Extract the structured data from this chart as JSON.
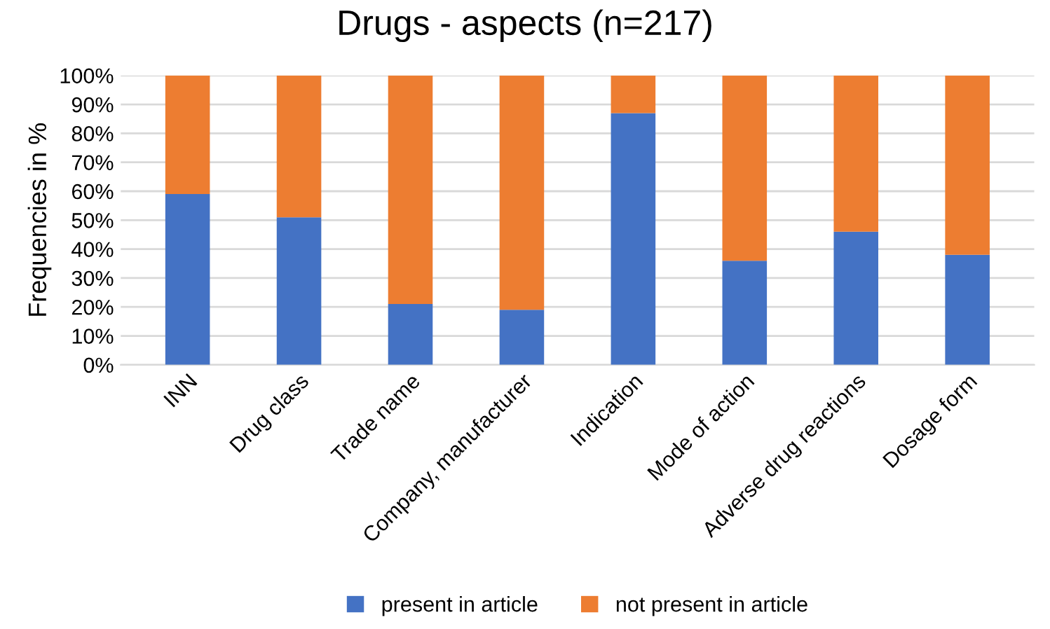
{
  "chart_data": {
    "type": "bar",
    "stacked": true,
    "title": "Drugs - aspects (n=217)",
    "ylabel": "Frequencies in %",
    "categories": [
      "INN",
      "Drug class",
      "Trade name",
      "Company, manufacturer",
      "Indication",
      "Mode of action",
      "Adverse drug reactions",
      "Dosage form"
    ],
    "series": [
      {
        "name": "present in article",
        "color": "#4472c4",
        "values": [
          59,
          51,
          21,
          19,
          87,
          36,
          46,
          38
        ]
      },
      {
        "name": "not present in article",
        "color": "#ed7d31",
        "values": [
          41,
          49,
          79,
          81,
          13,
          64,
          54,
          62
        ]
      }
    ],
    "ylim": [
      0,
      100
    ],
    "yticks": [
      {
        "value": 0,
        "label": "0%"
      },
      {
        "value": 10,
        "label": "10%"
      },
      {
        "value": 20,
        "label": "20%"
      },
      {
        "value": 30,
        "label": "30%"
      },
      {
        "value": 40,
        "label": "40%"
      },
      {
        "value": 50,
        "label": "50%"
      },
      {
        "value": 60,
        "label": "60%"
      },
      {
        "value": 70,
        "label": "70%"
      },
      {
        "value": 80,
        "label": "80%"
      },
      {
        "value": 90,
        "label": "90%"
      },
      {
        "value": 100,
        "label": "100%"
      }
    ],
    "grid": "y",
    "legend": "bottom"
  }
}
